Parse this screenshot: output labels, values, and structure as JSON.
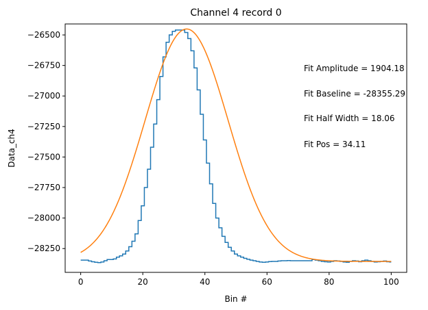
{
  "chart_data": {
    "type": "line",
    "title": "Channel 4 record 0",
    "xlabel": "Bin #",
    "ylabel": "Data_ch4",
    "xlim": [
      -5,
      105
    ],
    "ylim": [
      -28445,
      -26410
    ],
    "x_ticks": [
      0,
      20,
      40,
      60,
      80,
      100
    ],
    "y_ticks": [
      -28250,
      -28000,
      -27750,
      -27500,
      -27250,
      -27000,
      -26750,
      -26500
    ],
    "x_tick_labels": [
      "0",
      "20",
      "40",
      "60",
      "80",
      "100"
    ],
    "y_tick_labels": [
      "−28250",
      "−28000",
      "−27750",
      "−27500",
      "−27250",
      "−27000",
      "−26750",
      "−26500"
    ],
    "grid": false,
    "series": [
      {
        "style": "step",
        "color": "#1f77b4",
        "x": [
          0,
          1,
          2,
          3,
          4,
          5,
          6,
          7,
          8,
          9,
          10,
          11,
          12,
          13,
          14,
          15,
          16,
          17,
          18,
          19,
          20,
          21,
          22,
          23,
          24,
          25,
          26,
          27,
          28,
          29,
          30,
          31,
          32,
          33,
          34,
          35,
          36,
          37,
          38,
          39,
          40,
          41,
          42,
          43,
          44,
          45,
          46,
          47,
          48,
          49,
          50,
          51,
          52,
          53,
          54,
          55,
          56,
          57,
          58,
          59,
          60,
          61,
          62,
          63,
          64,
          65,
          66,
          67,
          68,
          69,
          70,
          71,
          72,
          73,
          74,
          75,
          76,
          77,
          78,
          79,
          80,
          81,
          82,
          83,
          84,
          85,
          86,
          87,
          88,
          89,
          90,
          91,
          92,
          93,
          94,
          95,
          96,
          97,
          98,
          99,
          100
        ],
        "y": [
          -28345,
          -28345,
          -28345,
          -28352,
          -28358,
          -28362,
          -28365,
          -28360,
          -28350,
          -28340,
          -28340,
          -28335,
          -28320,
          -28310,
          -28295,
          -28270,
          -28235,
          -28190,
          -28130,
          -28020,
          -27900,
          -27750,
          -27600,
          -27420,
          -27230,
          -27030,
          -26840,
          -26680,
          -26560,
          -26500,
          -26470,
          -26460,
          -26460,
          -26460,
          -26480,
          -26530,
          -26630,
          -26770,
          -26950,
          -27150,
          -27360,
          -27550,
          -27720,
          -27880,
          -28000,
          -28080,
          -28150,
          -28200,
          -28240,
          -28270,
          -28295,
          -28310,
          -28320,
          -28330,
          -28338,
          -28345,
          -28350,
          -28355,
          -28360,
          -28362,
          -28360,
          -28357,
          -28355,
          -28355,
          -28352,
          -28350,
          -28350,
          -28348,
          -28350,
          -28350,
          -28350,
          -28350,
          -28350,
          -28350,
          -28350,
          -28340,
          -28345,
          -28350,
          -28355,
          -28358,
          -28360,
          -28355,
          -28350,
          -28352,
          -28355,
          -28360,
          -28362,
          -28355,
          -28350,
          -28352,
          -28358,
          -28350,
          -28345,
          -28350,
          -28355,
          -28360,
          -28358,
          -28355,
          -28352,
          -28358,
          -28360
        ]
      },
      {
        "style": "gaussian-fit",
        "color": "#ff7f0e",
        "amplitude": 1904.18,
        "baseline": -28355.29,
        "half_width": 18.06,
        "pos": 34.11,
        "x_range": [
          0,
          100
        ]
      }
    ],
    "annotations": [
      "Fit Amplitude = 1904.18",
      "Fit Baseline = -28355.29",
      "Fit Half Width = 18.06",
      "Fit Pos = 34.11"
    ]
  }
}
